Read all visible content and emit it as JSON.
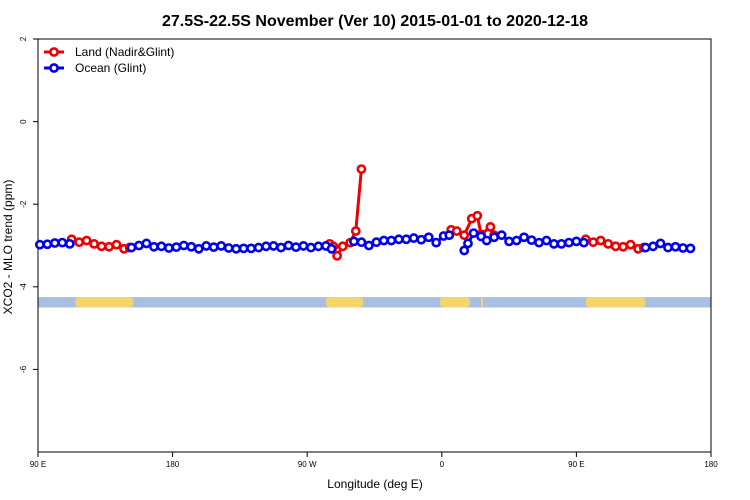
{
  "chart_data": {
    "type": "line",
    "title": "27.5S-22.5S November (Ver 10)   2015-01-01 to 2020-12-18",
    "xlabel": "Longitude (deg E)",
    "ylabel": "XCO2 - MLO trend (ppm)",
    "xlim": [
      90,
      450
    ],
    "ylim": [
      -8,
      2
    ],
    "x_ticks": [
      {
        "value": 90,
        "label": "90 E"
      },
      {
        "value": 162,
        "label": "180"
      },
      {
        "value": 234,
        "label": "90 W"
      },
      {
        "value": 306,
        "label": "0"
      },
      {
        "value": 378,
        "label": "90 E"
      },
      {
        "value": 450,
        "label": "180"
      }
    ],
    "y_ticks": [
      {
        "value": 2,
        "label": "2"
      },
      {
        "value": 0,
        "label": "0"
      },
      {
        "value": -2,
        "label": "-2"
      },
      {
        "value": -4,
        "label": "-4"
      },
      {
        "value": -6,
        "label": "-6"
      }
    ],
    "legend": {
      "position": "top-left"
    },
    "series": [
      {
        "name": "Land (Nadir&Glint)",
        "color": "#ee0000",
        "segments": [
          [
            [
              108,
              -2.85
            ],
            [
              112,
              -2.92
            ],
            [
              116,
              -2.88
            ],
            [
              120,
              -2.96
            ],
            [
              124,
              -3.02
            ],
            [
              128,
              -3.03
            ],
            [
              132,
              -2.98
            ],
            [
              136,
              -3.08
            ],
            [
              139,
              -3.05
            ]
          ],
          [
            [
              246,
              -2.96
            ],
            [
              248,
              -3.02
            ],
            [
              250,
              -3.25
            ],
            [
              253,
              -3.02
            ],
            [
              257,
              -2.93
            ],
            [
              260,
              -2.65
            ],
            [
              263,
              -1.15
            ]
          ],
          [
            [
              311,
              -2.62
            ],
            [
              314,
              -2.65
            ],
            [
              318,
              -2.75
            ],
            [
              322,
              -2.35
            ],
            [
              325,
              -2.28
            ],
            [
              327,
              -2.73
            ],
            [
              332,
              -2.55
            ],
            [
              334,
              -2.75
            ]
          ],
          [
            [
              383,
              -2.85
            ],
            [
              387,
              -2.92
            ],
            [
              391,
              -2.88
            ],
            [
              395,
              -2.96
            ],
            [
              399,
              -3.02
            ],
            [
              403,
              -3.03
            ],
            [
              407,
              -2.98
            ],
            [
              411,
              -3.08
            ],
            [
              414,
              -3.05
            ]
          ]
        ]
      },
      {
        "name": "Ocean (Glint)",
        "color": "#0000ee",
        "segments": [
          [
            [
              91,
              -2.98
            ],
            [
              95,
              -2.97
            ],
            [
              99,
              -2.94
            ],
            [
              103,
              -2.93
            ],
            [
              107,
              -2.96
            ]
          ],
          [
            [
              140,
              -3.05
            ],
            [
              144,
              -3.0
            ],
            [
              148,
              -2.95
            ],
            [
              152,
              -3.03
            ],
            [
              156,
              -3.02
            ],
            [
              160,
              -3.06
            ],
            [
              164,
              -3.04
            ],
            [
              168,
              -3.0
            ],
            [
              172,
              -3.03
            ],
            [
              176,
              -3.08
            ],
            [
              180,
              -3.01
            ],
            [
              184,
              -3.04
            ],
            [
              188,
              -3.01
            ],
            [
              192,
              -3.06
            ],
            [
              196,
              -3.08
            ],
            [
              200,
              -3.07
            ],
            [
              204,
              -3.07
            ],
            [
              208,
              -3.05
            ],
            [
              212,
              -3.02
            ],
            [
              216,
              -3.01
            ],
            [
              220,
              -3.05
            ],
            [
              224,
              -3.0
            ],
            [
              228,
              -3.04
            ],
            [
              232,
              -3.01
            ],
            [
              236,
              -3.05
            ],
            [
              240,
              -3.02
            ],
            [
              244,
              -3.01
            ],
            [
              247,
              -3.08
            ]
          ],
          [
            [
              259,
              -2.9
            ],
            [
              263,
              -2.92
            ],
            [
              267,
              -3.0
            ],
            [
              271,
              -2.92
            ],
            [
              275,
              -2.88
            ],
            [
              279,
              -2.88
            ],
            [
              283,
              -2.85
            ],
            [
              287,
              -2.85
            ],
            [
              291,
              -2.82
            ],
            [
              295,
              -2.86
            ],
            [
              299,
              -2.8
            ],
            [
              303,
              -2.93
            ],
            [
              307,
              -2.77
            ],
            [
              310,
              -2.75
            ]
          ],
          [
            [
              318,
              -3.12
            ],
            [
              320,
              -2.95
            ],
            [
              323,
              -2.7
            ],
            [
              327,
              -2.78
            ],
            [
              330,
              -2.88
            ],
            [
              334,
              -2.8
            ],
            [
              338,
              -2.75
            ],
            [
              342,
              -2.9
            ],
            [
              346,
              -2.88
            ],
            [
              350,
              -2.8
            ],
            [
              354,
              -2.87
            ],
            [
              358,
              -2.93
            ],
            [
              362,
              -2.88
            ],
            [
              366,
              -2.96
            ],
            [
              370,
              -2.96
            ],
            [
              374,
              -2.93
            ],
            [
              378,
              -2.9
            ],
            [
              382,
              -2.93
            ]
          ],
          [
            [
              415,
              -3.05
            ],
            [
              419,
              -3.02
            ],
            [
              423,
              -2.95
            ],
            [
              427,
              -3.05
            ],
            [
              431,
              -3.03
            ],
            [
              435,
              -3.06
            ],
            [
              439,
              -3.07
            ]
          ]
        ]
      }
    ],
    "surface_strip": {
      "y_range": [
        -4.5,
        -4.25
      ],
      "ocean_color": "#a7bfe0",
      "land_color": "#f5d56b",
      "land_x_ranges": [
        [
          110,
          141
        ],
        [
          244,
          264
        ],
        [
          305,
          321
        ],
        [
          327,
          328
        ],
        [
          383,
          415
        ]
      ]
    }
  }
}
